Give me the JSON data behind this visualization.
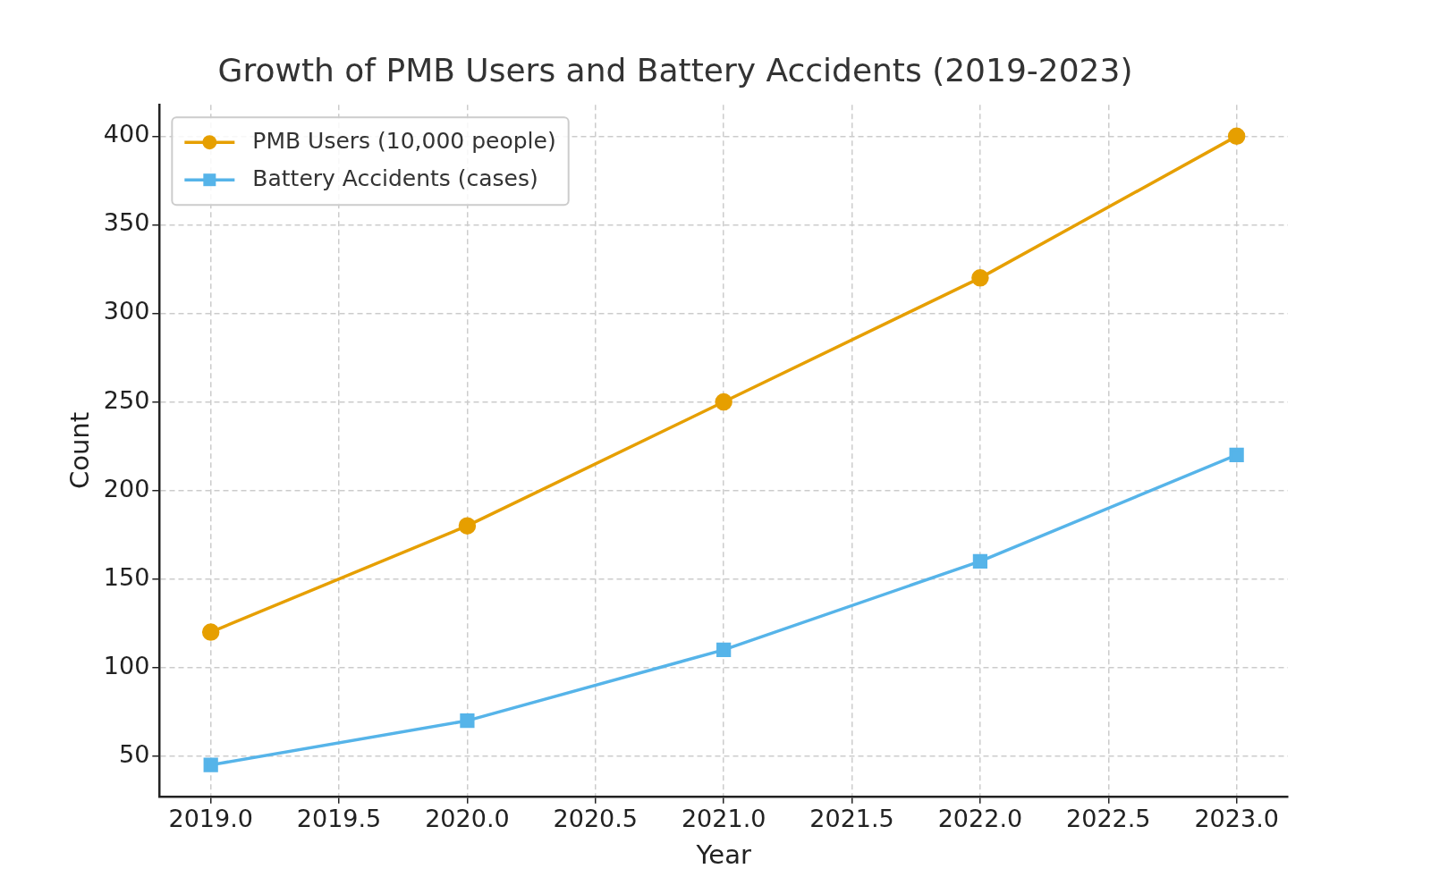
{
  "chart_data": {
    "type": "line",
    "title": "Growth of PMB Users and Battery Accidents (2019-2023)",
    "xlabel": "Year",
    "ylabel": "Count",
    "x": [
      2019,
      2020,
      2021,
      2022,
      2023
    ],
    "series": [
      {
        "name": "PMB Users (10,000 people)",
        "color": "#e69f00",
        "values": [
          120,
          180,
          250,
          320,
          400
        ],
        "marker": "circle"
      },
      {
        "name": "Battery Accidents (cases)",
        "color": "#56b4e9",
        "values": [
          45,
          70,
          110,
          160,
          220
        ],
        "marker": "square"
      }
    ],
    "xlim": [
      2018.8,
      2023.2
    ],
    "ylim": [
      27.25,
      417.75
    ],
    "xticks": [
      {
        "value": 2019,
        "label": "2019.0"
      },
      {
        "value": 2019.5,
        "label": "2019.5"
      },
      {
        "value": 2020,
        "label": "2020.0"
      },
      {
        "value": 2020.5,
        "label": "2020.5"
      },
      {
        "value": 2021,
        "label": "2021.0"
      },
      {
        "value": 2021.5,
        "label": "2021.5"
      },
      {
        "value": 2022,
        "label": "2022.0"
      },
      {
        "value": 2022.5,
        "label": "2022.5"
      },
      {
        "value": 2023,
        "label": "2023.0"
      }
    ],
    "yticks": [
      50,
      100,
      150,
      200,
      250,
      300,
      350,
      400
    ],
    "grid": true,
    "legend": "top left",
    "line_style": "solid"
  }
}
